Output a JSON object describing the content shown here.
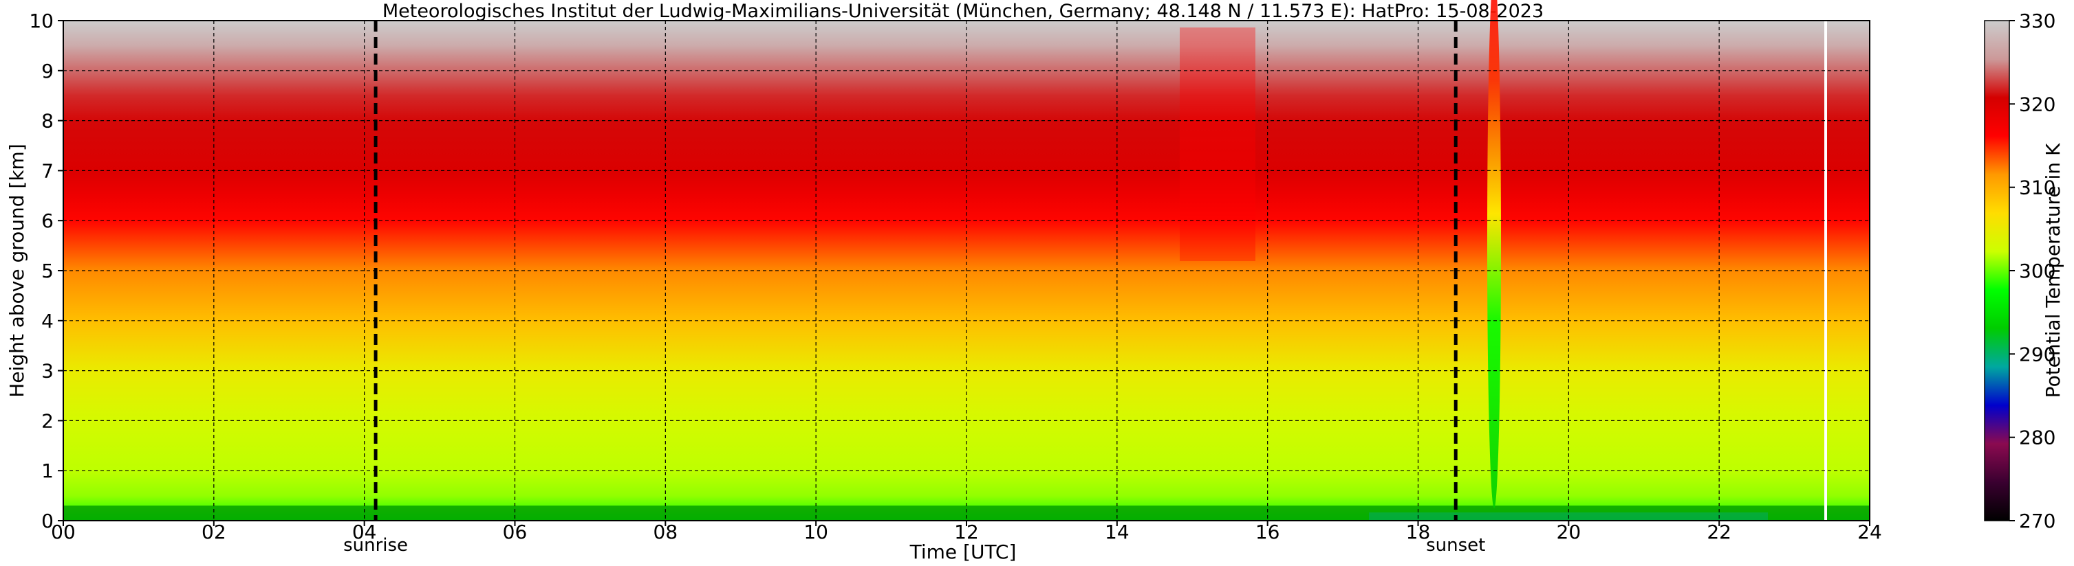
{
  "chart_data": {
    "type": "heatmap",
    "title": "Meteorologisches Institut der Ludwig-Maximilians-Universität (München, Germany; 48.148 N / 11.573 E):    HatPro: 15-08-2023",
    "xlabel": "Time [UTC]",
    "ylabel": "Height above ground [km]",
    "xlim": [
      0,
      24
    ],
    "ylim": [
      0,
      10
    ],
    "x_ticks": [
      "00",
      "02",
      "04",
      "06",
      "08",
      "10",
      "12",
      "14",
      "16",
      "18",
      "20",
      "22",
      "24"
    ],
    "y_ticks": [
      "0",
      "1",
      "2",
      "3",
      "4",
      "5",
      "6",
      "7",
      "8",
      "9",
      "10"
    ],
    "grid": true,
    "colorbar": {
      "label": "Potential Temperature in K",
      "range": [
        270,
        330
      ],
      "ticks": [
        "270",
        "280",
        "290",
        "300",
        "310",
        "320",
        "330"
      ],
      "colors": [
        "#000000",
        "#3a0030",
        "#8b0a50",
        "#0000cc",
        "#00a8a0",
        "#00cc00",
        "#00ff00",
        "#ccff00",
        "#ffdd00",
        "#ff9900",
        "#ff0000",
        "#d40000",
        "#cc9999",
        "#cccccc"
      ]
    },
    "field_profile": {
      "height_km": [
        0,
        0.5,
        1,
        2,
        3,
        4,
        5,
        5.5,
        6,
        6.5,
        7,
        8,
        8.5,
        9,
        9.5,
        10
      ],
      "potential_temperature_K": [
        298,
        301,
        302,
        303,
        305,
        309,
        312,
        314,
        316,
        318,
        320,
        321,
        322,
        324,
        327,
        330
      ]
    },
    "events": [
      {
        "type": "sunrise",
        "time_utc": 4.15
      },
      {
        "type": "sunset",
        "time_utc": 18.5
      }
    ],
    "annotations": {
      "sunrise_label": "sunrise",
      "sunset_label": "sunset"
    }
  }
}
